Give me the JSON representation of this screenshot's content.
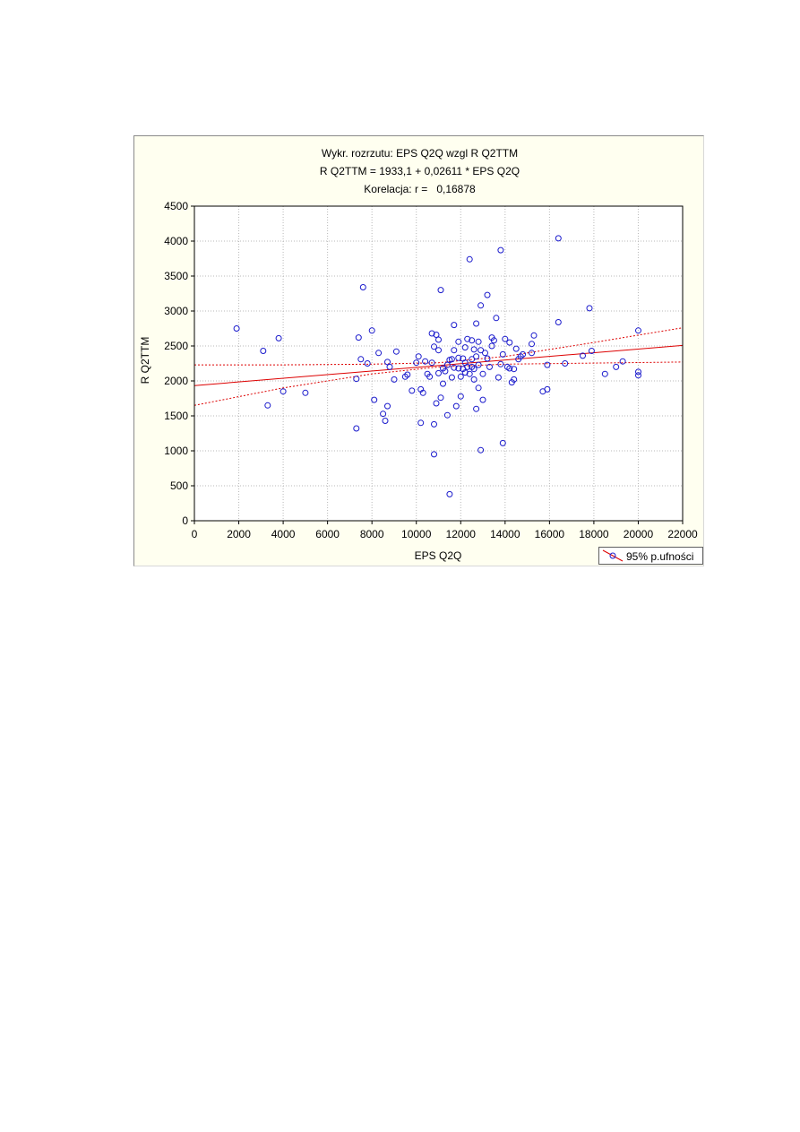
{
  "chart_data": {
    "type": "scatter",
    "title_lines": [
      "Wykr. rozrzutu: EPS Q2Q wzgl R Q2TTM",
      "R Q2TTM = 1933,1 + 0,02611 * EPS Q2Q",
      "Korelacja: r =   0,16878"
    ],
    "xlabel": "EPS Q2Q",
    "ylabel": "R Q2TTM",
    "xlim": [
      0,
      22000
    ],
    "ylim": [
      0,
      4500
    ],
    "xticks": [
      0,
      2000,
      4000,
      6000,
      8000,
      10000,
      12000,
      14000,
      16000,
      18000,
      20000,
      22000
    ],
    "yticks": [
      0,
      500,
      1000,
      1500,
      2000,
      2500,
      3000,
      3500,
      4000,
      4500
    ],
    "grid": true,
    "legend": {
      "placement": "bottom-right-outside",
      "label": "95% p.ufności"
    },
    "regression": {
      "intercept": 1933.1,
      "slope": 0.02611
    },
    "ci_lower": [
      [
        0,
        1650
      ],
      [
        4000,
        1900
      ],
      [
        8000,
        2100
      ],
      [
        11000,
        2200
      ],
      [
        14000,
        2240
      ],
      [
        18000,
        2255
      ],
      [
        22000,
        2270
      ]
    ],
    "ci_upper": [
      [
        0,
        2230
      ],
      [
        4000,
        2230
      ],
      [
        8000,
        2240
      ],
      [
        11000,
        2260
      ],
      [
        14000,
        2350
      ],
      [
        18000,
        2550
      ],
      [
        22000,
        2760
      ]
    ],
    "colors": {
      "points": "#1a1acc",
      "regression": "#dd0000",
      "background": "#fffff0"
    },
    "points": [
      [
        1900,
        2750
      ],
      [
        3100,
        2430
      ],
      [
        3300,
        1650
      ],
      [
        3800,
        2610
      ],
      [
        4000,
        1850
      ],
      [
        5000,
        1830
      ],
      [
        7300,
        1320
      ],
      [
        7300,
        2030
      ],
      [
        7400,
        2620
      ],
      [
        7500,
        2310
      ],
      [
        7600,
        3340
      ],
      [
        7800,
        2250
      ],
      [
        8000,
        2720
      ],
      [
        8100,
        1730
      ],
      [
        8300,
        2400
      ],
      [
        8500,
        1530
      ],
      [
        8600,
        1430
      ],
      [
        8700,
        1640
      ],
      [
        8700,
        2270
      ],
      [
        8800,
        2200
      ],
      [
        9000,
        2020
      ],
      [
        9100,
        2420
      ],
      [
        9500,
        2060
      ],
      [
        9600,
        2090
      ],
      [
        9800,
        1860
      ],
      [
        10000,
        2260
      ],
      [
        10100,
        2350
      ],
      [
        10200,
        1880
      ],
      [
        10200,
        1400
      ],
      [
        10300,
        1830
      ],
      [
        10400,
        2280
      ],
      [
        10500,
        2100
      ],
      [
        10600,
        2060
      ],
      [
        10700,
        2680
      ],
      [
        10700,
        2260
      ],
      [
        10800,
        950
      ],
      [
        10800,
        1380
      ],
      [
        10800,
        2490
      ],
      [
        10900,
        2660
      ],
      [
        10900,
        1680
      ],
      [
        11000,
        2590
      ],
      [
        11000,
        2440
      ],
      [
        11000,
        2110
      ],
      [
        11100,
        1760
      ],
      [
        11100,
        3300
      ],
      [
        11200,
        1960
      ],
      [
        11200,
        2180
      ],
      [
        11300,
        2140
      ],
      [
        11400,
        2230
      ],
      [
        11400,
        1510
      ],
      [
        11500,
        380
      ],
      [
        11500,
        2300
      ],
      [
        11600,
        2050
      ],
      [
        11600,
        2310
      ],
      [
        11700,
        2800
      ],
      [
        11700,
        2440
      ],
      [
        11700,
        2190
      ],
      [
        11800,
        1640
      ],
      [
        11900,
        2560
      ],
      [
        11900,
        2330
      ],
      [
        11900,
        2180
      ],
      [
        12000,
        2060
      ],
      [
        12000,
        1780
      ],
      [
        12100,
        2320
      ],
      [
        12100,
        2170
      ],
      [
        12200,
        2480
      ],
      [
        12200,
        2260
      ],
      [
        12200,
        2120
      ],
      [
        12300,
        2600
      ],
      [
        12300,
        2200
      ],
      [
        12400,
        2100
      ],
      [
        12400,
        3740
      ],
      [
        12500,
        2580
      ],
      [
        12500,
        2310
      ],
      [
        12500,
        2200
      ],
      [
        12600,
        2170
      ],
      [
        12600,
        2020
      ],
      [
        12600,
        2450
      ],
      [
        12700,
        2350
      ],
      [
        12700,
        2820
      ],
      [
        12700,
        1600
      ],
      [
        12800,
        2560
      ],
      [
        12800,
        2230
      ],
      [
        12800,
        1900
      ],
      [
        12900,
        3080
      ],
      [
        12900,
        2440
      ],
      [
        12900,
        1010
      ],
      [
        13000,
        2100
      ],
      [
        13000,
        1730
      ],
      [
        13100,
        2400
      ],
      [
        13200,
        2320
      ],
      [
        13200,
        3230
      ],
      [
        13300,
        2200
      ],
      [
        13400,
        2620
      ],
      [
        13400,
        2500
      ],
      [
        13500,
        2580
      ],
      [
        13600,
        2900
      ],
      [
        13700,
        2050
      ],
      [
        13800,
        3870
      ],
      [
        13800,
        2240
      ],
      [
        13900,
        1110
      ],
      [
        13900,
        2380
      ],
      [
        14000,
        2600
      ],
      [
        14100,
        2200
      ],
      [
        14200,
        2550
      ],
      [
        14200,
        2180
      ],
      [
        14300,
        1980
      ],
      [
        14400,
        2020
      ],
      [
        14400,
        2170
      ],
      [
        14500,
        2460
      ],
      [
        14600,
        2310
      ],
      [
        14700,
        2350
      ],
      [
        14800,
        2380
      ],
      [
        15200,
        2530
      ],
      [
        15200,
        2400
      ],
      [
        15300,
        2650
      ],
      [
        15700,
        1850
      ],
      [
        15900,
        2230
      ],
      [
        15900,
        1880
      ],
      [
        16400,
        4040
      ],
      [
        16400,
        2840
      ],
      [
        16700,
        2250
      ],
      [
        17500,
        2360
      ],
      [
        17800,
        3040
      ],
      [
        17900,
        2430
      ],
      [
        18500,
        2100
      ],
      [
        19000,
        2200
      ],
      [
        19300,
        2280
      ],
      [
        20000,
        2720
      ],
      [
        20000,
        2130
      ],
      [
        20000,
        2080
      ]
    ]
  }
}
